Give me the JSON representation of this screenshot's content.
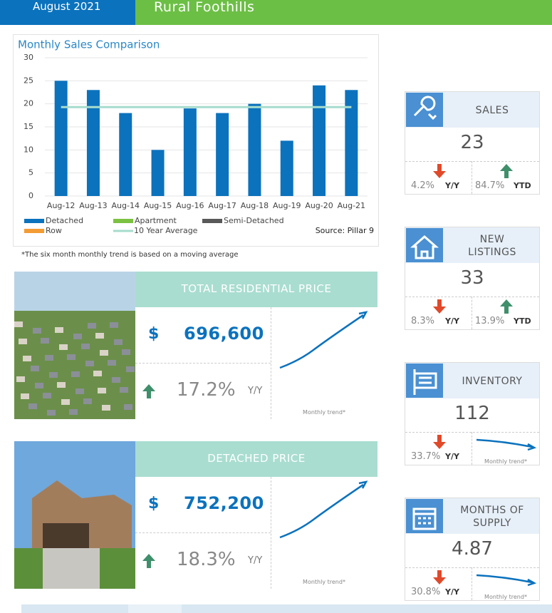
{
  "header": {
    "date": "August 2021",
    "region": "Rural Foothills"
  },
  "chart_data": {
    "type": "bar",
    "title": "Monthly Sales Comparison",
    "categories": [
      "Aug-12",
      "Aug-13",
      "Aug-14",
      "Aug-15",
      "Aug-16",
      "Aug-17",
      "Aug-18",
      "Aug-19",
      "Aug-20",
      "Aug-21"
    ],
    "series": [
      {
        "name": "Detached",
        "color": "#0b72bd",
        "values": [
          25,
          23,
          18,
          10,
          19,
          18,
          20,
          12,
          24,
          23
        ]
      },
      {
        "name": "Apartment",
        "color": "#7cc242",
        "values": [
          null,
          null,
          null,
          null,
          null,
          null,
          null,
          null,
          null,
          null
        ]
      },
      {
        "name": "Semi-Detached",
        "color": "#595959",
        "values": [
          null,
          null,
          null,
          null,
          null,
          null,
          null,
          null,
          null,
          null
        ]
      },
      {
        "name": "Row",
        "color": "#f39c34",
        "values": [
          null,
          null,
          null,
          null,
          null,
          null,
          null,
          null,
          null,
          null
        ]
      },
      {
        "name": "10 Year Average",
        "color": "#a6dccd",
        "type": "line",
        "values": [
          19.3,
          19.3,
          19.3,
          19.3,
          19.3,
          19.3,
          19.3,
          19.3,
          19.3,
          19.3
        ]
      }
    ],
    "ylim": [
      0,
      30
    ],
    "yticks": [
      0,
      5,
      10,
      15,
      20,
      25,
      30
    ],
    "grid": true,
    "source": "Source: Pillar 9"
  },
  "footnote": "*The six month monthly trend is based on a moving average",
  "price_cards": [
    {
      "title": "TOTAL RESIDENTIAL PRICE",
      "currency": "$",
      "value": "696,600",
      "change": "17.2%",
      "period": "Y/Y",
      "trend_label": "Monthly trend*"
    },
    {
      "title": "DETACHED PRICE",
      "currency": "$",
      "value": "752,200",
      "change": "18.3%",
      "period": "Y/Y",
      "trend_label": "Monthly trend*"
    }
  ],
  "stats": [
    {
      "title": "SALES",
      "value": "23",
      "yy_change": "4.2%",
      "yy_label": "Y/Y",
      "ytd_change": "84.7%",
      "ytd_label": "YTD"
    },
    {
      "title": "NEW LISTINGS",
      "value": "33",
      "yy_change": "8.3%",
      "yy_label": "Y/Y",
      "ytd_change": "13.9%",
      "ytd_label": "YTD"
    },
    {
      "title": "INVENTORY",
      "value": "112",
      "yy_change": "33.7%",
      "yy_label": "Y/Y",
      "trend_label": "Monthly trend*"
    },
    {
      "title": "MONTHS OF SUPPLY",
      "value": "4.87",
      "yy_change": "30.8%",
      "yy_label": "Y/Y",
      "trend_label": "Monthly trend*"
    }
  ]
}
